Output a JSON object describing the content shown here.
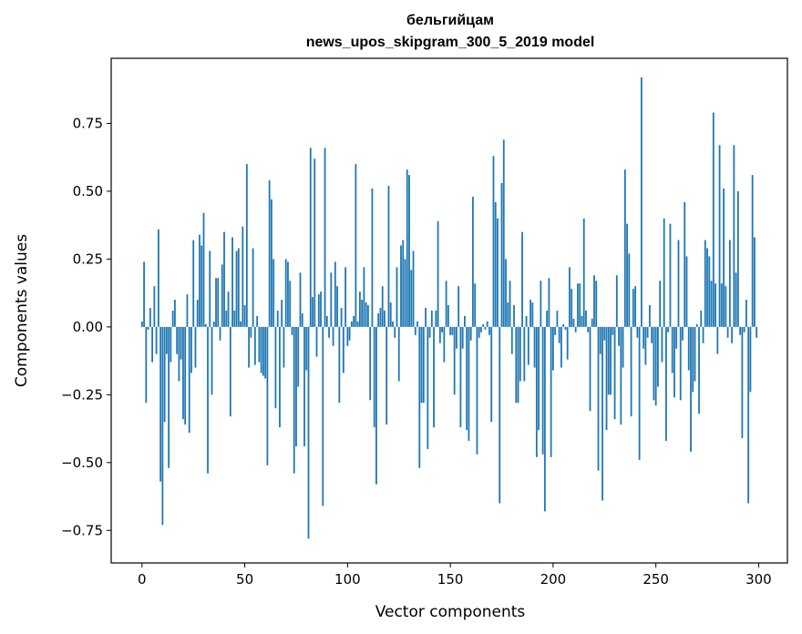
{
  "chart_data": {
    "type": "bar",
    "title": "бельгийцам",
    "subtitle": "news_upos_skipgram_300_5_2019 model",
    "xlabel": "Vector components",
    "ylabel": "Components values",
    "xlim": [
      -15,
      314
    ],
    "ylim": [
      -0.87,
      0.99
    ],
    "xticks": [
      0,
      50,
      100,
      150,
      200,
      250,
      300
    ],
    "yticks": [
      -0.75,
      -0.5,
      -0.25,
      0.0,
      0.25,
      0.5,
      0.75
    ],
    "ytick_labels": [
      "−0.75",
      "−0.50",
      "−0.25",
      "0.00",
      "0.25",
      "0.50",
      "0.75"
    ],
    "bar_color": "#1f77b4",
    "values": [
      0.02,
      0.24,
      -0.28,
      -0.01,
      0.07,
      -0.13,
      0.15,
      -0.1,
      0.36,
      -0.57,
      -0.73,
      -0.35,
      -0.1,
      -0.52,
      -0.13,
      0.06,
      0.1,
      -0.1,
      -0.2,
      -0.12,
      -0.34,
      -0.36,
      0.12,
      -0.39,
      -0.17,
      0.32,
      -0.15,
      0.1,
      0.34,
      0.3,
      0.42,
      0.01,
      -0.54,
      0.28,
      -0.25,
      0.02,
      0.18,
      0.18,
      -0.05,
      0.23,
      0.35,
      0.06,
      0.13,
      -0.33,
      0.33,
      0.06,
      0.28,
      0.29,
      0.02,
      0.37,
      0.08,
      0.6,
      -0.15,
      -0.04,
      0.29,
      -0.14,
      0.04,
      -0.13,
      -0.17,
      -0.18,
      -0.19,
      -0.51,
      0.54,
      0.47,
      0.25,
      -0.3,
      0.06,
      -0.37,
      0.1,
      -0.15,
      0.25,
      0.24,
      0.17,
      -0.03,
      -0.54,
      -0.44,
      -0.22,
      0.2,
      0.05,
      -0.44,
      -0.16,
      -0.78,
      0.66,
      0.11,
      0.62,
      -0.11,
      0.12,
      0.13,
      -0.66,
      0.66,
      0.04,
      -0.04,
      0.2,
      -0.07,
      0.24,
      0.15,
      -0.28,
      0.07,
      -0.17,
      0.22,
      -0.07,
      -0.05,
      0.02,
      0.04,
      0.6,
      0.02,
      0.13,
      0.1,
      0.22,
      0.09,
      0.08,
      -0.27,
      0.51,
      -0.37,
      -0.58,
      0.05,
      0.07,
      0.15,
      0.06,
      -0.36,
      0.52,
      0.09,
      0.02,
      -0.04,
      0.22,
      -0.2,
      0.3,
      0.32,
      0.25,
      0.58,
      0.56,
      0.21,
      0.28,
      -0.03,
      0.02,
      -0.52,
      -0.28,
      -0.28,
      0.07,
      -0.45,
      -0.04,
      0.06,
      -0.37,
      0.06,
      0.39,
      -0.06,
      -0.02,
      -0.13,
      0.17,
      0.08,
      -0.03,
      -0.03,
      -0.25,
      -0.08,
      0.15,
      -0.37,
      -0.08,
      0.04,
      -0.38,
      -0.42,
      -0.05,
      0.48,
      0.16,
      -0.47,
      -0.04,
      -0.02,
      0.01,
      -0.01,
      0.02,
      -0.03,
      -0.35,
      0.63,
      0.46,
      0.4,
      -0.65,
      0.53,
      0.69,
      0.25,
      0.09,
      0.17,
      -0.1,
      0.08,
      -0.28,
      -0.28,
      -0.2,
      0.35,
      -0.2,
      0.04,
      -0.14,
      0.1,
      0.09,
      -0.15,
      -0.48,
      -0.38,
      0.17,
      -0.47,
      -0.68,
      0.06,
      0.18,
      -0.48,
      -0.16,
      -0.03,
      0.06,
      -0.06,
      -0.15,
      0.01,
      -0.01,
      -0.12,
      0.22,
      0.14,
      0.03,
      -0.02,
      0.16,
      0.16,
      0.04,
      0.4,
      0.06,
      -0.02,
      -0.31,
      0.03,
      0.19,
      0.17,
      -0.53,
      -0.1,
      -0.64,
      -0.05,
      -0.38,
      -0.25,
      -0.25,
      -0.03,
      -0.34,
      0.19,
      -0.07,
      -0.36,
      -0.15,
      0.58,
      0.38,
      0.27,
      -0.33,
      0.14,
      0.15,
      -0.04,
      -0.49,
      0.92,
      -0.08,
      -0.14,
      -0.04,
      0.08,
      -0.06,
      -0.27,
      -0.29,
      -0.22,
      0.17,
      -0.13,
      0.4,
      -0.42,
      -0.02,
      0.38,
      -0.17,
      -0.26,
      -0.08,
      0.32,
      -0.27,
      -0.05,
      0.46,
      0.26,
      -0.16,
      -0.46,
      -0.24,
      -0.2,
      0.01,
      -0.32,
      0.06,
      -0.06,
      0.32,
      0.29,
      0.26,
      0.17,
      0.79,
      0.16,
      -0.1,
      0.67,
      0.16,
      0.51,
      0.15,
      -0.04,
      0.32,
      -0.06,
      0.67,
      0.2,
      0.5,
      -0.03,
      -0.41,
      -0.02,
      0.1,
      -0.65,
      -0.24,
      0.56,
      0.33,
      -0.04
    ]
  }
}
